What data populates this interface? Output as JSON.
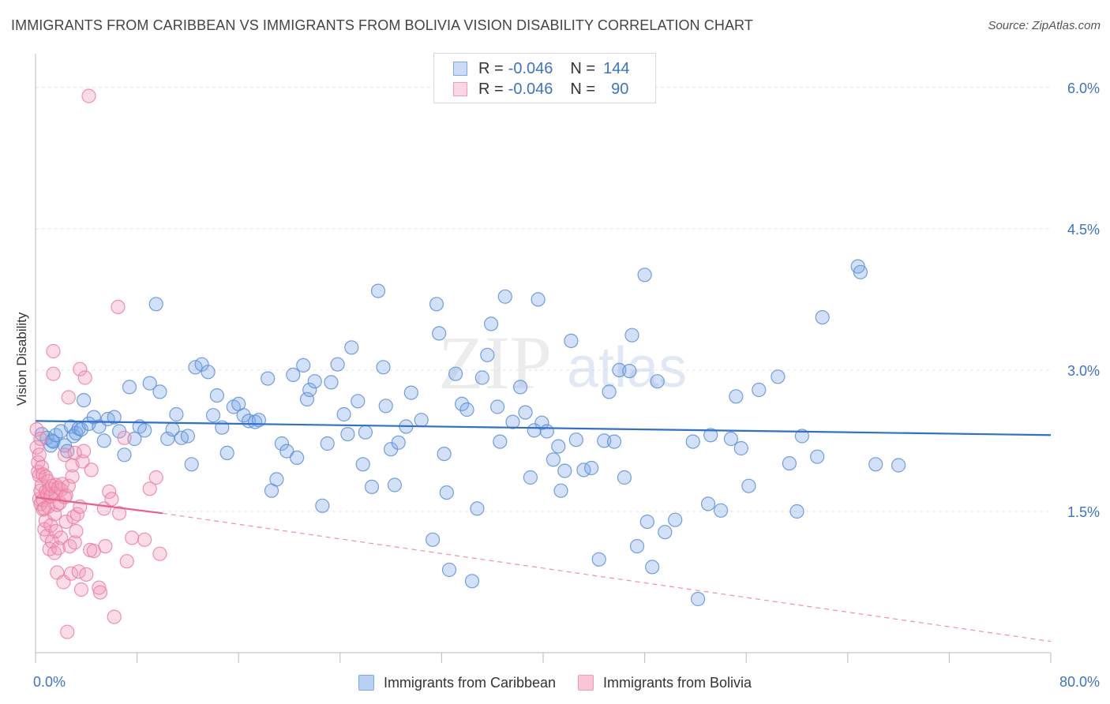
{
  "header": {
    "title": "IMMIGRANTS FROM CARIBBEAN VS IMMIGRANTS FROM BOLIVIA VISION DISABILITY CORRELATION CHART",
    "source": "Source: ZipAtlas.com"
  },
  "watermark": {
    "zip": "ZIP",
    "atlas": "atlas"
  },
  "legend_top": {
    "rows": [
      {
        "r_label": "R =",
        "r_value": "-0.046",
        "n_label": "N =",
        "n_value": "144",
        "color": "#7fa8e8"
      },
      {
        "r_label": "R =",
        "r_value": "-0.046",
        "n_label": "N =",
        "n_value": "90",
        "color": "#f29bb7"
      }
    ]
  },
  "chart_data": {
    "type": "scatter",
    "title": "IMMIGRANTS FROM CARIBBEAN VS IMMIGRANTS FROM BOLIVIA VISION DISABILITY CORRELATION CHART",
    "xlabel": "",
    "ylabel": "Vision Disability",
    "xlim": [
      0,
      80
    ],
    "ylim": [
      0,
      6.3
    ],
    "x_tick_labels": [
      {
        "value": 0,
        "label": "0.0%"
      },
      {
        "value": 80,
        "label": "80.0%"
      }
    ],
    "y_ticks": [
      {
        "value": 1.5,
        "label": "1.5%"
      },
      {
        "value": 3.0,
        "label": "3.0%"
      },
      {
        "value": 4.5,
        "label": "4.5%"
      },
      {
        "value": 6.0,
        "label": "6.0%"
      }
    ],
    "grid": true,
    "legend_position": "top-center",
    "series": [
      {
        "name": "Immigrants from Caribbean",
        "color": "#7fa8e8",
        "stroke": "#5b8fd8",
        "line_color": "#2f6fd0",
        "trend": {
          "x": [
            0,
            80
          ],
          "y": [
            2.46,
            2.31
          ]
        },
        "points": [
          [
            0.5,
            2.32
          ],
          [
            0.9,
            2.28
          ],
          [
            1.2,
            2.2
          ],
          [
            1.3,
            2.25
          ],
          [
            1.4,
            2.24
          ],
          [
            1.6,
            2.31
          ],
          [
            2.0,
            2.35
          ],
          [
            2.3,
            2.2
          ],
          [
            2.5,
            2.14
          ],
          [
            2.8,
            2.4
          ],
          [
            3.0,
            2.3
          ],
          [
            3.2,
            2.33
          ],
          [
            3.4,
            2.38
          ],
          [
            3.6,
            2.37
          ],
          [
            3.8,
            2.68
          ],
          [
            4.2,
            2.43
          ],
          [
            4.6,
            2.5
          ],
          [
            5.0,
            2.4
          ],
          [
            5.4,
            2.25
          ],
          [
            5.7,
            2.48
          ],
          [
            6.2,
            2.5
          ],
          [
            6.6,
            2.35
          ],
          [
            7.0,
            2.1
          ],
          [
            7.4,
            2.82
          ],
          [
            7.8,
            2.27
          ],
          [
            8.2,
            2.4
          ],
          [
            8.6,
            2.36
          ],
          [
            9.0,
            2.86
          ],
          [
            9.5,
            3.7
          ],
          [
            9.8,
            2.77
          ],
          [
            10.4,
            2.27
          ],
          [
            10.8,
            2.37
          ],
          [
            11.1,
            2.53
          ],
          [
            11.5,
            2.28
          ],
          [
            12.0,
            2.3
          ],
          [
            12.3,
            2.0
          ],
          [
            12.6,
            3.03
          ],
          [
            13.1,
            3.06
          ],
          [
            13.6,
            2.98
          ],
          [
            14.0,
            2.52
          ],
          [
            14.3,
            2.73
          ],
          [
            14.7,
            2.39
          ],
          [
            15.1,
            2.12
          ],
          [
            15.6,
            2.61
          ],
          [
            16.0,
            2.64
          ],
          [
            16.4,
            2.52
          ],
          [
            16.8,
            2.46
          ],
          [
            17.3,
            2.45
          ],
          [
            17.6,
            2.47
          ],
          [
            18.3,
            2.91
          ],
          [
            18.6,
            1.72
          ],
          [
            19.0,
            1.84
          ],
          [
            19.4,
            2.22
          ],
          [
            19.8,
            2.14
          ],
          [
            20.3,
            2.95
          ],
          [
            20.6,
            2.07
          ],
          [
            21.1,
            3.05
          ],
          [
            21.4,
            2.69
          ],
          [
            21.6,
            2.79
          ],
          [
            22.0,
            2.88
          ],
          [
            22.6,
            1.56
          ],
          [
            23.0,
            2.22
          ],
          [
            23.3,
            2.87
          ],
          [
            23.8,
            3.06
          ],
          [
            24.3,
            2.53
          ],
          [
            24.6,
            2.32
          ],
          [
            24.9,
            3.24
          ],
          [
            25.4,
            2.67
          ],
          [
            25.8,
            2.0
          ],
          [
            26.0,
            2.34
          ],
          [
            26.5,
            1.76
          ],
          [
            27.0,
            3.84
          ],
          [
            27.4,
            3.03
          ],
          [
            27.6,
            2.62
          ],
          [
            28.0,
            2.16
          ],
          [
            28.3,
            1.78
          ],
          [
            28.6,
            2.23
          ],
          [
            29.2,
            2.4
          ],
          [
            29.6,
            2.76
          ],
          [
            30.4,
            2.47
          ],
          [
            31.3,
            1.2
          ],
          [
            31.6,
            3.7
          ],
          [
            31.8,
            3.39
          ],
          [
            32.2,
            2.11
          ],
          [
            32.4,
            1.7
          ],
          [
            32.6,
            0.88
          ],
          [
            33.1,
            2.96
          ],
          [
            33.6,
            2.64
          ],
          [
            34.0,
            2.58
          ],
          [
            34.4,
            0.76
          ],
          [
            34.8,
            1.53
          ],
          [
            35.2,
            2.92
          ],
          [
            35.6,
            3.16
          ],
          [
            35.9,
            3.49
          ],
          [
            36.4,
            2.61
          ],
          [
            36.6,
            2.24
          ],
          [
            37.0,
            3.78
          ],
          [
            37.6,
            2.45
          ],
          [
            38.2,
            2.82
          ],
          [
            38.6,
            2.55
          ],
          [
            39.0,
            1.86
          ],
          [
            39.3,
            2.36
          ],
          [
            39.6,
            3.75
          ],
          [
            39.9,
            2.44
          ],
          [
            40.3,
            2.35
          ],
          [
            40.8,
            2.05
          ],
          [
            41.2,
            2.19
          ],
          [
            41.4,
            1.72
          ],
          [
            41.7,
            1.93
          ],
          [
            42.2,
            3.31
          ],
          [
            42.6,
            2.26
          ],
          [
            43.2,
            1.94
          ],
          [
            43.8,
            1.96
          ],
          [
            44.4,
            0.99
          ],
          [
            44.8,
            2.25
          ],
          [
            45.2,
            2.77
          ],
          [
            45.6,
            2.24
          ],
          [
            46.0,
            3.0
          ],
          [
            46.4,
            1.86
          ],
          [
            46.8,
            2.99
          ],
          [
            47.0,
            3.37
          ],
          [
            47.4,
            1.13
          ],
          [
            48.0,
            4.01
          ],
          [
            48.2,
            1.39
          ],
          [
            48.6,
            0.91
          ],
          [
            49.0,
            2.88
          ],
          [
            49.6,
            1.28
          ],
          [
            50.4,
            1.41
          ],
          [
            51.8,
            2.24
          ],
          [
            52.2,
            0.57
          ],
          [
            53.0,
            1.58
          ],
          [
            53.2,
            2.31
          ],
          [
            54.0,
            1.51
          ],
          [
            54.8,
            2.27
          ],
          [
            55.2,
            2.72
          ],
          [
            55.6,
            2.17
          ],
          [
            56.2,
            1.77
          ],
          [
            57.0,
            2.79
          ],
          [
            58.5,
            2.93
          ],
          [
            59.4,
            2.01
          ],
          [
            60.0,
            1.5
          ],
          [
            60.4,
            2.3
          ],
          [
            61.6,
            2.08
          ],
          [
            62.0,
            3.56
          ],
          [
            64.8,
            4.1
          ],
          [
            65.0,
            4.04
          ],
          [
            66.2,
            2.0
          ],
          [
            68.0,
            1.99
          ]
        ]
      },
      {
        "name": "Immigrants from Bolivia",
        "color": "#f29bb7",
        "stroke": "#ec7fa3",
        "line_color": "#e8608c",
        "trend": {
          "x": [
            0,
            10
          ],
          "y": [
            1.65,
            1.48
          ]
        },
        "trend_dashed": {
          "x": [
            10,
            80
          ],
          "y": [
            1.48,
            0.12
          ]
        },
        "points": [
          [
            0.1,
            2.37
          ],
          [
            0.1,
            2.18
          ],
          [
            0.2,
            2.02
          ],
          [
            0.2,
            1.92
          ],
          [
            0.3,
            1.88
          ],
          [
            0.3,
            1.63
          ],
          [
            0.3,
            2.1
          ],
          [
            0.4,
            1.72
          ],
          [
            0.4,
            2.27
          ],
          [
            0.4,
            1.58
          ],
          [
            0.5,
            1.78
          ],
          [
            0.5,
            1.97
          ],
          [
            0.6,
            1.52
          ],
          [
            0.6,
            1.89
          ],
          [
            0.6,
            1.62
          ],
          [
            0.7,
            1.31
          ],
          [
            0.7,
            1.53
          ],
          [
            0.8,
            1.4
          ],
          [
            0.8,
            1.71
          ],
          [
            0.8,
            1.87
          ],
          [
            0.9,
            1.68
          ],
          [
            0.9,
            1.24
          ],
          [
            1.0,
            1.55
          ],
          [
            1.0,
            1.82
          ],
          [
            1.1,
            1.74
          ],
          [
            1.1,
            1.1
          ],
          [
            1.2,
            1.35
          ],
          [
            1.2,
            1.66
          ],
          [
            1.3,
            1.18
          ],
          [
            1.3,
            1.77
          ],
          [
            1.4,
            3.2
          ],
          [
            1.4,
            2.96
          ],
          [
            1.5,
            1.47
          ],
          [
            1.5,
            1.06
          ],
          [
            1.6,
            1.69
          ],
          [
            1.6,
            1.29
          ],
          [
            1.6,
            1.78
          ],
          [
            1.7,
            1.57
          ],
          [
            1.7,
            0.85
          ],
          [
            1.8,
            1.11
          ],
          [
            1.8,
            1.75
          ],
          [
            1.9,
            1.59
          ],
          [
            2.0,
            1.73
          ],
          [
            2.0,
            1.22
          ],
          [
            2.1,
            1.79
          ],
          [
            2.2,
            0.75
          ],
          [
            2.3,
            2.1
          ],
          [
            2.3,
            1.65
          ],
          [
            2.4,
            1.67
          ],
          [
            2.4,
            1.39
          ],
          [
            2.5,
            0.22
          ],
          [
            2.6,
            1.77
          ],
          [
            2.6,
            2.71
          ],
          [
            2.7,
            1.13
          ],
          [
            2.8,
            0.84
          ],
          [
            2.9,
            1.87
          ],
          [
            2.9,
            1.99
          ],
          [
            3.0,
            1.44
          ],
          [
            3.1,
            2.12
          ],
          [
            3.1,
            1.17
          ],
          [
            3.2,
            1.29
          ],
          [
            3.3,
            1.47
          ],
          [
            3.4,
            0.86
          ],
          [
            3.5,
            1.55
          ],
          [
            3.5,
            3.01
          ],
          [
            3.6,
            0.67
          ],
          [
            3.7,
            2.03
          ],
          [
            3.8,
            2.14
          ],
          [
            3.9,
            2.92
          ],
          [
            4.0,
            0.83
          ],
          [
            4.2,
            5.91
          ],
          [
            4.3,
            1.09
          ],
          [
            4.4,
            1.94
          ],
          [
            4.6,
            1.08
          ],
          [
            5.0,
            0.69
          ],
          [
            5.1,
            0.64
          ],
          [
            5.4,
            1.53
          ],
          [
            5.5,
            1.13
          ],
          [
            5.8,
            1.71
          ],
          [
            6.0,
            1.63
          ],
          [
            6.2,
            0.38
          ],
          [
            6.5,
            3.67
          ],
          [
            6.6,
            1.48
          ],
          [
            7.0,
            2.28
          ],
          [
            7.2,
            0.97
          ],
          [
            7.6,
            1.22
          ],
          [
            8.6,
            1.2
          ],
          [
            9.0,
            1.74
          ],
          [
            9.5,
            1.86
          ],
          [
            9.8,
            1.05
          ]
        ]
      }
    ]
  },
  "legend_bottom": {
    "items": [
      {
        "label": "Immigrants from Caribbean",
        "color": "#b9d0f3",
        "border": "#7fa8e8"
      },
      {
        "label": "Immigrants from Bolivia",
        "color": "#f9c6d6",
        "border": "#f29bb7"
      }
    ]
  }
}
